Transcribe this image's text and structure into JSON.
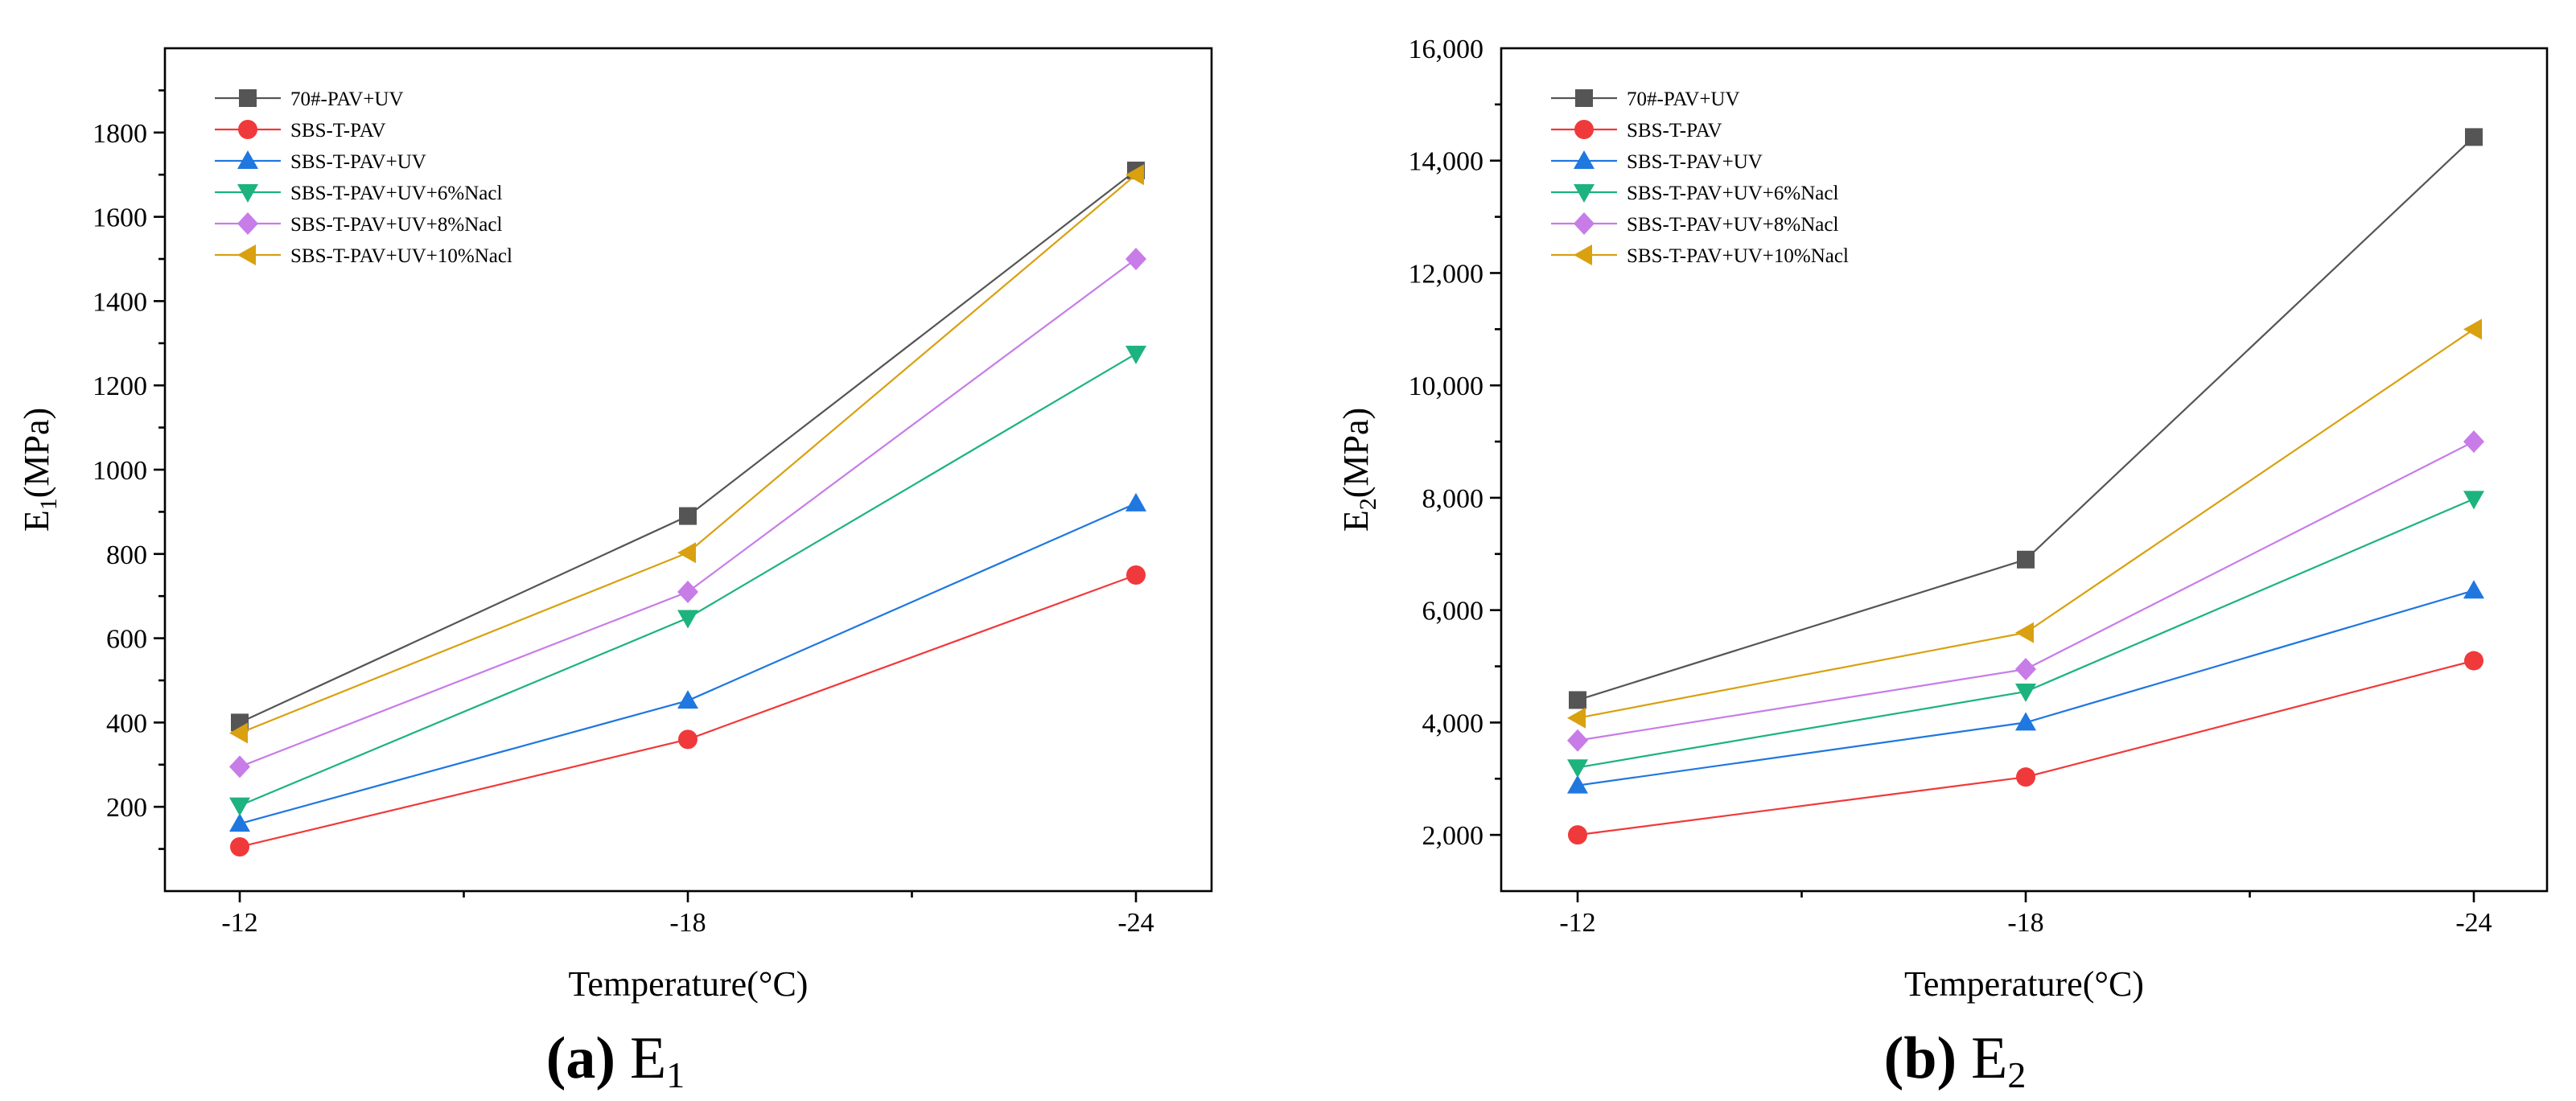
{
  "chart_data": [
    {
      "type": "line",
      "title": "",
      "caption_letter": "(a)",
      "caption_label": "E",
      "caption_sub": "1",
      "xlabel": "Temperature(°C)",
      "ylabel_main": "E",
      "ylabel_sub": "1",
      "ylabel_unit": "(MPa)",
      "categories": [
        "-12",
        "-18",
        "-24"
      ],
      "ylim": [
        0,
        2000
      ],
      "yticks": [
        200,
        400,
        600,
        800,
        1000,
        1200,
        1400,
        1600,
        1800
      ],
      "ytick_labels": [
        "200",
        "400",
        "600",
        "800",
        "1000",
        "1200",
        "1400",
        "1600",
        "1800"
      ],
      "legend_position": "top-left",
      "series": [
        {
          "name": "70#-PAV+UV",
          "color": "#555555",
          "marker": "square",
          "values": [
            400,
            890,
            1710
          ]
        },
        {
          "name": "SBS-T-PAV",
          "color": "#f0393b",
          "marker": "circle",
          "values": [
            105,
            360,
            750
          ]
        },
        {
          "name": "SBS-T-PAV+UV",
          "color": "#1f77e0",
          "marker": "triangle-up",
          "values": [
            160,
            452,
            920
          ]
        },
        {
          "name": "SBS-T-PAV+UV+6%Nacl",
          "color": "#1db37e",
          "marker": "triangle-down",
          "values": [
            203,
            648,
            1275
          ]
        },
        {
          "name": "SBS-T-PAV+UV+8%Nacl",
          "color": "#c77ce8",
          "marker": "diamond",
          "values": [
            295,
            710,
            1500
          ]
        },
        {
          "name": "SBS-T-PAV+UV+10%Nacl",
          "color": "#d9a010",
          "marker": "triangle-left",
          "values": [
            375,
            803,
            1700
          ]
        }
      ]
    },
    {
      "type": "line",
      "title": "",
      "caption_letter": "(b)",
      "caption_label": "E",
      "caption_sub": "2",
      "xlabel": "Temperature(°C)",
      "ylabel_main": "E",
      "ylabel_sub": "2",
      "ylabel_unit": "(MPa)",
      "categories": [
        "-12",
        "-18",
        "-24"
      ],
      "ylim": [
        1000,
        16000
      ],
      "yticks": [
        2000,
        4000,
        6000,
        8000,
        10000,
        12000,
        14000,
        16000
      ],
      "ytick_labels": [
        "2,000",
        "4,000",
        "6,000",
        "8,000",
        "10,000",
        "12,000",
        "14,000",
        "16,000"
      ],
      "legend_position": "top-left",
      "series": [
        {
          "name": "70#-PAV+UV",
          "color": "#555555",
          "marker": "square",
          "values": [
            4400,
            6900,
            14420
          ]
        },
        {
          "name": "SBS-T-PAV",
          "color": "#f0393b",
          "marker": "circle",
          "values": [
            2000,
            3030,
            5100
          ]
        },
        {
          "name": "SBS-T-PAV+UV",
          "color": "#1f77e0",
          "marker": "triangle-up",
          "values": [
            2880,
            4000,
            6350
          ]
        },
        {
          "name": "SBS-T-PAV+UV+6%Nacl",
          "color": "#1db37e",
          "marker": "triangle-down",
          "values": [
            3200,
            4550,
            7980
          ]
        },
        {
          "name": "SBS-T-PAV+UV+8%Nacl",
          "color": "#c77ce8",
          "marker": "diamond",
          "values": [
            3680,
            4950,
            9000
          ]
        },
        {
          "name": "SBS-T-PAV+UV+10%Nacl",
          "color": "#d9a010",
          "marker": "triangle-left",
          "values": [
            4080,
            5600,
            11000
          ]
        }
      ]
    }
  ]
}
